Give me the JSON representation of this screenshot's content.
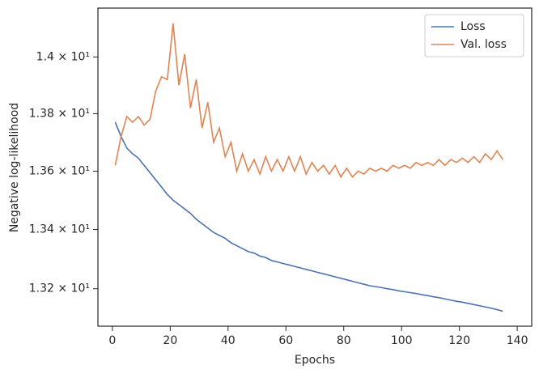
{
  "chart_data": {
    "type": "line",
    "xlabel": "Epochs",
    "ylabel": "Negative log-likelihood",
    "x": [
      1,
      3,
      5,
      7,
      9,
      11,
      13,
      15,
      17,
      19,
      21,
      23,
      25,
      27,
      29,
      31,
      33,
      35,
      37,
      39,
      41,
      43,
      45,
      47,
      49,
      51,
      53,
      55,
      57,
      59,
      61,
      63,
      65,
      67,
      69,
      71,
      73,
      75,
      77,
      79,
      81,
      83,
      85,
      87,
      89,
      91,
      93,
      95,
      97,
      99,
      101,
      103,
      105,
      107,
      109,
      111,
      113,
      115,
      117,
      119,
      121,
      123,
      125,
      127,
      129,
      131,
      133,
      135
    ],
    "series": [
      {
        "name": "Loss",
        "color": "#4c72b0",
        "values": [
          13.77,
          13.72,
          13.68,
          13.66,
          13.645,
          13.62,
          13.595,
          13.57,
          13.545,
          13.52,
          13.5,
          13.485,
          13.47,
          13.455,
          13.435,
          13.42,
          13.405,
          13.39,
          13.38,
          13.37,
          13.355,
          13.345,
          13.335,
          13.325,
          13.32,
          13.31,
          13.305,
          13.295,
          13.29,
          13.285,
          13.28,
          13.275,
          13.27,
          13.265,
          13.26,
          13.255,
          13.25,
          13.245,
          13.24,
          13.235,
          13.23,
          13.225,
          13.22,
          13.215,
          13.21,
          13.207,
          13.204,
          13.2,
          13.197,
          13.193,
          13.19,
          13.187,
          13.184,
          13.18,
          13.177,
          13.173,
          13.17,
          13.166,
          13.162,
          13.158,
          13.155,
          13.151,
          13.147,
          13.143,
          13.139,
          13.135,
          13.13,
          13.125
        ]
      },
      {
        "name": "Val. loss",
        "color": "#dd8452",
        "values": [
          13.62,
          13.72,
          13.79,
          13.77,
          13.79,
          13.76,
          13.78,
          13.88,
          13.93,
          13.92,
          14.12,
          13.9,
          14.01,
          13.82,
          13.92,
          13.75,
          13.84,
          13.7,
          13.75,
          13.65,
          13.7,
          13.6,
          13.66,
          13.6,
          13.64,
          13.59,
          13.65,
          13.6,
          13.64,
          13.6,
          13.65,
          13.6,
          13.65,
          13.59,
          13.63,
          13.6,
          13.62,
          13.59,
          13.62,
          13.58,
          13.61,
          13.58,
          13.6,
          13.59,
          13.61,
          13.6,
          13.61,
          13.6,
          13.62,
          13.61,
          13.62,
          13.61,
          13.63,
          13.62,
          13.63,
          13.62,
          13.64,
          13.62,
          13.64,
          13.63,
          13.645,
          13.63,
          13.65,
          13.63,
          13.66,
          13.64,
          13.67,
          13.64
        ]
      }
    ],
    "xlim": [
      -5,
      145
    ],
    "xticks": [
      0,
      20,
      40,
      60,
      80,
      100,
      120,
      140
    ],
    "ylim": [
      13.075,
      14.175
    ],
    "yscale": "log",
    "yticks": [
      {
        "value": 13.2,
        "label": "1.32 × 10¹"
      },
      {
        "value": 13.4,
        "label": "1.34 × 10¹"
      },
      {
        "value": 13.6,
        "label": "1.36 × 10¹"
      },
      {
        "value": 13.8,
        "label": "1.38 × 10¹"
      },
      {
        "value": 14.0,
        "label": "1.4 × 10¹"
      }
    ],
    "legend": "upper right"
  }
}
